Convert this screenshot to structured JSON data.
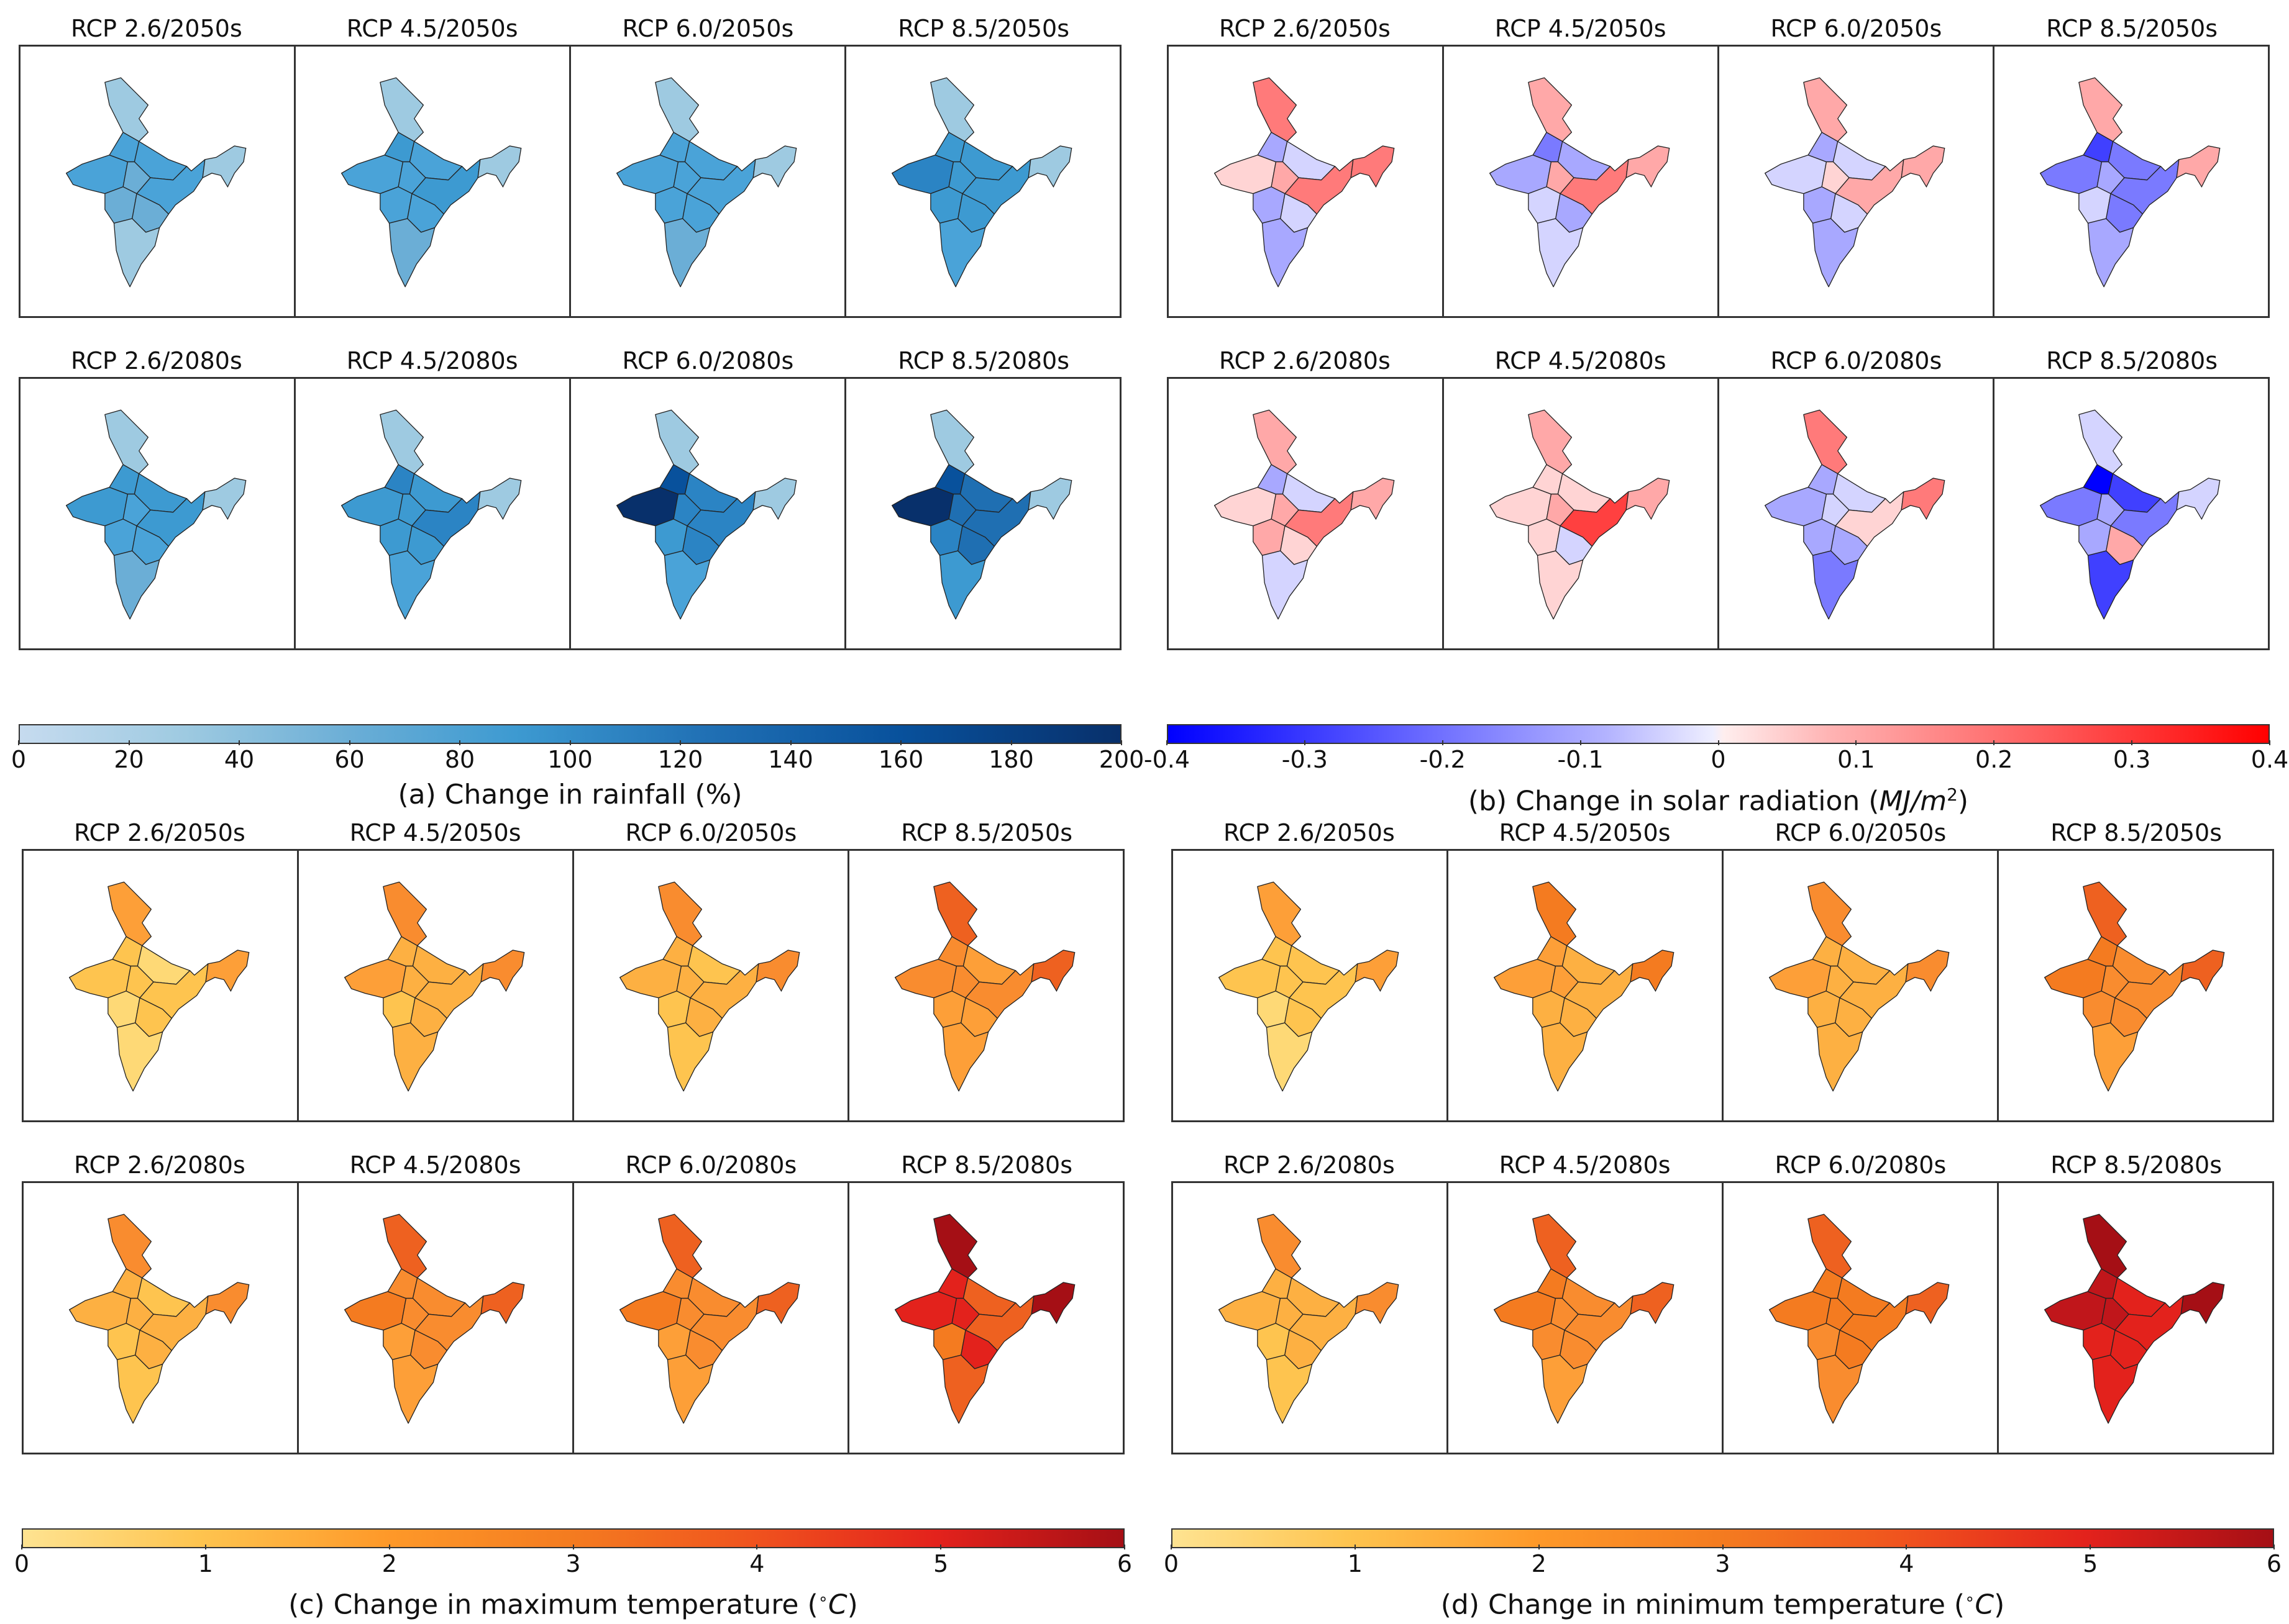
{
  "colors": {
    "rain": [
      "#9ecae1",
      "#6baed6",
      "#4aa3d8",
      "#3d9ad1",
      "#2b84c4",
      "#1f6fb2",
      "#08519c",
      "#08306b"
    ],
    "solar": [
      "#0000ff",
      "#4040ff",
      "#7a7aff",
      "#a8a8ff",
      "#d4d4ff",
      "#ffd4d4",
      "#ffa8a8",
      "#ff7a7a",
      "#ff4040"
    ],
    "temp": [
      "#fed976",
      "#fec44f",
      "#fdb042",
      "#fd9f38",
      "#f98c2f",
      "#f47b20",
      "#ee6120",
      "#e3221c",
      "#c0161b",
      "#a50f15"
    ]
  },
  "quadrants": {
    "a": {
      "caption": "(a) Change in rainfall (%)",
      "ticks": [
        "0",
        "20",
        "40",
        "60",
        "80",
        "100",
        "120",
        "140",
        "160",
        "180",
        "200"
      ],
      "rows": [
        {
          "titles": [
            "RCP 2.6/2050s",
            "RCP 4.5/2050s",
            "RCP 6.0/2050s",
            "RCP 8.5/2050s"
          ],
          "maps": [
            [
              2,
              2,
              2,
              0,
              1,
              2,
              1,
              1,
              0
            ],
            [
              2,
              3,
              2,
              0,
              2,
              3,
              2,
              2,
              1
            ],
            [
              2,
              2,
              2,
              0,
              2,
              2,
              2,
              2,
              1
            ],
            [
              4,
              3,
              3,
              0,
              3,
              3,
              3,
              3,
              2
            ]
          ]
        },
        {
          "titles": [
            "RCP 2.6/2080s",
            "RCP 4.5/2080s",
            "RCP 6.0/2080s",
            "RCP 8.5/2080s"
          ],
          "maps": [
            [
              3,
              3,
              3,
              0,
              2,
              3,
              2,
              2,
              1
            ],
            [
              3,
              4,
              3,
              0,
              3,
              4,
              3,
              3,
              2
            ],
            [
              7,
              6,
              4,
              0,
              4,
              4,
              3,
              4,
              2
            ],
            [
              7,
              6,
              5,
              0,
              5,
              5,
              4,
              5,
              3
            ]
          ]
        }
      ]
    },
    "b": {
      "caption": "(b) Change in solar radiation",
      "caption_unit": "MJ/m",
      "caption_exp": "2",
      "ticks": [
        "-0.4",
        "-0.3",
        "-0.2",
        "-0.1",
        "0",
        "0.1",
        "0.2",
        "0.3",
        "0.4"
      ],
      "rows": [
        {
          "titles": [
            "RCP 2.6/2050s",
            "RCP 4.5/2050s",
            "RCP 6.0/2050s",
            "RCP 8.5/2050s"
          ],
          "maps": [
            [
              5,
              3,
              4,
              7,
              6,
              7,
              3,
              4,
              3
            ],
            [
              3,
              2,
              3,
              6,
              6,
              7,
              4,
              3,
              4
            ],
            [
              4,
              3,
              4,
              6,
              5,
              6,
              3,
              4,
              3
            ],
            [
              2,
              1,
              2,
              6,
              3,
              2,
              4,
              2,
              3
            ]
          ]
        },
        {
          "titles": [
            "RCP 2.6/2080s",
            "RCP 4.5/2080s",
            "RCP 6.0/2080s",
            "RCP 8.5/2080s"
          ],
          "maps": [
            [
              5,
              3,
              4,
              6,
              6,
              7,
              6,
              5,
              4
            ],
            [
              5,
              5,
              5,
              6,
              6,
              8,
              5,
              4,
              5
            ],
            [
              3,
              3,
              4,
              7,
              4,
              5,
              3,
              3,
              2
            ],
            [
              2,
              0,
              1,
              4,
              3,
              2,
              3,
              6,
              1
            ]
          ]
        }
      ]
    },
    "c": {
      "caption": "(c) Change in maximum temperature",
      "caption_unit": "C",
      "ticks": [
        "0",
        "1",
        "2",
        "3",
        "4",
        "5",
        "6"
      ],
      "rows": [
        {
          "titles": [
            "RCP 2.6/2050s",
            "RCP 4.5/2050s",
            "RCP 6.0/2050s",
            "RCP 8.5/2050s"
          ],
          "maps": [
            [
              1,
              1,
              0,
              3,
              1,
              1,
              0,
              1,
              0
            ],
            [
              3,
              2,
              2,
              4,
              2,
              2,
              1,
              2,
              2
            ],
            [
              2,
              2,
              1,
              4,
              2,
              2,
              1,
              2,
              1
            ],
            [
              4,
              4,
              3,
              6,
              4,
              4,
              3,
              3,
              3
            ]
          ]
        },
        {
          "titles": [
            "RCP 2.6/2080s",
            "RCP 4.5/2080s",
            "RCP 6.0/2080s",
            "RCP 8.5/2080s"
          ],
          "maps": [
            [
              2,
              2,
              1,
              4,
              2,
              2,
              1,
              2,
              1
            ],
            [
              5,
              4,
              4,
              6,
              4,
              4,
              3,
              4,
              3
            ],
            [
              5,
              4,
              4,
              6,
              4,
              4,
              3,
              4,
              3
            ],
            [
              7,
              7,
              6,
              9,
              7,
              6,
              5,
              7,
              6
            ]
          ]
        }
      ]
    },
    "d": {
      "caption": "(d) Change in minimum temperature",
      "caption_unit": "C",
      "ticks": [
        "0",
        "1",
        "2",
        "3",
        "4",
        "5",
        "6"
      ],
      "rows": [
        {
          "titles": [
            "RCP 2.6/2050s",
            "RCP 4.5/2050s",
            "RCP 6.0/2050s",
            "RCP 8.5/2050s"
          ],
          "maps": [
            [
              1,
              1,
              1,
              3,
              1,
              1,
              0,
              1,
              0
            ],
            [
              3,
              3,
              2,
              5,
              3,
              2,
              2,
              2,
              2
            ],
            [
              3,
              2,
              2,
              4,
              2,
              2,
              2,
              2,
              2
            ],
            [
              5,
              5,
              4,
              6,
              4,
              4,
              4,
              4,
              3
            ]
          ]
        },
        {
          "titles": [
            "RCP 2.6/2080s",
            "RCP 4.5/2080s",
            "RCP 6.0/2080s",
            "RCP 8.5/2080s"
          ],
          "maps": [
            [
              2,
              2,
              2,
              4,
              2,
              2,
              1,
              2,
              1
            ],
            [
              5,
              5,
              4,
              6,
              4,
              4,
              4,
              4,
              3
            ],
            [
              5,
              5,
              5,
              6,
              5,
              5,
              4,
              5,
              4
            ],
            [
              8,
              8,
              7,
              9,
              8,
              7,
              7,
              7,
              7
            ]
          ]
        }
      ]
    }
  }
}
